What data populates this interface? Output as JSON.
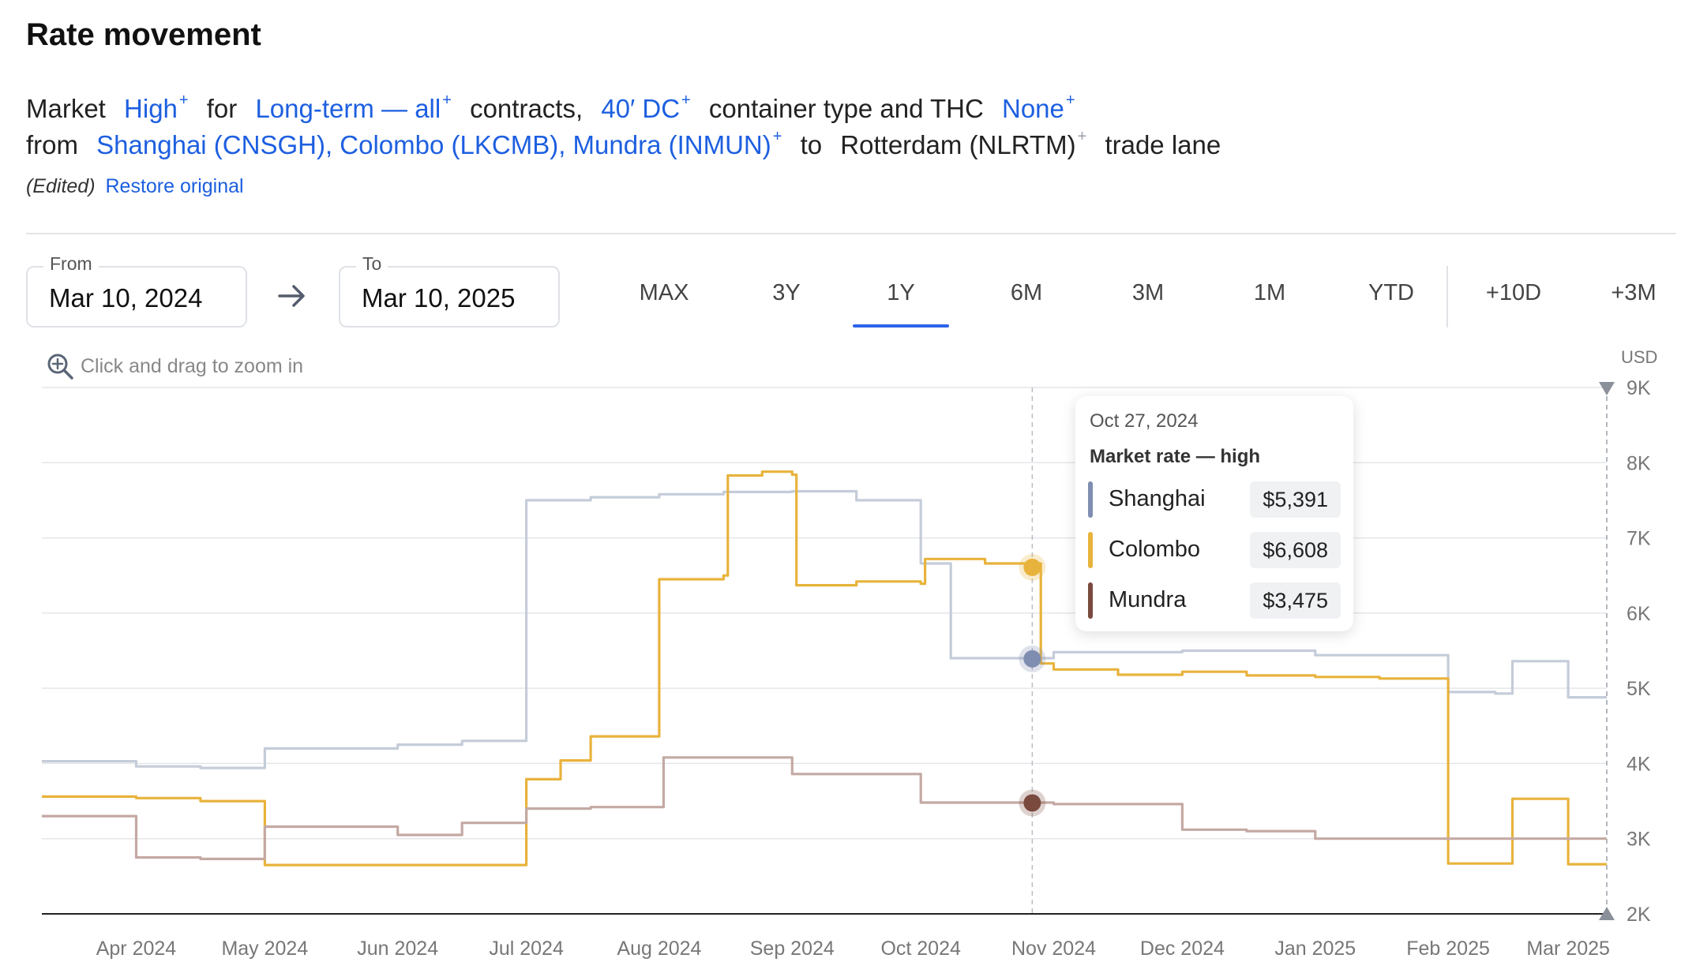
{
  "title": "Rate movement",
  "description": {
    "w_market": "Market",
    "market_value": "High",
    "w_for": "for",
    "contract_value": "Long-term — all",
    "w_contracts": "contracts,",
    "container_value": "40′ DC",
    "w_container": "container type and THC",
    "thc_value": "None",
    "w_from": "from",
    "origins_value": "Shanghai (CNSGH), Colombo (LKCMB), Mundra (INMUN)",
    "w_to": "to",
    "destination_value": "Rotterdam (NLRTM)",
    "w_tradelane": "trade lane",
    "plus": "+"
  },
  "edited_label": "(Edited)",
  "restore_label": "Restore original",
  "date_range": {
    "from_label": "From",
    "from_value": "Mar 10, 2024",
    "to_label": "To",
    "to_value": "Mar 10, 2025"
  },
  "range_buttons": [
    "MAX",
    "3Y",
    "1Y",
    "6M",
    "3M",
    "1M",
    "YTD",
    "+10D",
    "+3M"
  ],
  "active_range": "1Y",
  "zoom_hint": "Click and drag to zoom in",
  "tooltip": {
    "date": "Oct 27, 2024",
    "subtitle": "Market rate — high",
    "rows": [
      {
        "name": "Shanghai",
        "value": "$5,391",
        "color": "#7f8db0"
      },
      {
        "name": "Colombo",
        "value": "$6,608",
        "color": "#e8b33c"
      },
      {
        "name": "Mundra",
        "value": "$3,475",
        "color": "#7a4a3e"
      }
    ]
  },
  "chart_data": {
    "type": "line",
    "step": true,
    "ylabel": "USD",
    "ylim": [
      2000,
      9000
    ],
    "yticks": [
      2000,
      3000,
      4000,
      5000,
      6000,
      7000,
      8000,
      9000
    ],
    "ytick_labels": [
      "2K",
      "3K",
      "4K",
      "5K",
      "6K",
      "7K",
      "8K",
      "9K"
    ],
    "xlim": [
      "2024-03-10",
      "2025-03-10"
    ],
    "xticks": [
      {
        "date": "2024-04-01",
        "label": "Apr 2024"
      },
      {
        "date": "2024-05-01",
        "label": "May 2024"
      },
      {
        "date": "2024-06-01",
        "label": "Jun 2024"
      },
      {
        "date": "2024-07-01",
        "label": "Jul 2024"
      },
      {
        "date": "2024-08-01",
        "label": "Aug 2024"
      },
      {
        "date": "2024-09-01",
        "label": "Sep 2024"
      },
      {
        "date": "2024-10-01",
        "label": "Oct 2024"
      },
      {
        "date": "2024-11-01",
        "label": "Nov 2024"
      },
      {
        "date": "2024-12-01",
        "label": "Dec 2024"
      },
      {
        "date": "2025-01-01",
        "label": "Jan 2025"
      },
      {
        "date": "2025-02-01",
        "label": "Feb 2025"
      },
      {
        "date": "2025-03-01",
        "label": "Mar 2025"
      }
    ],
    "grid": true,
    "hover_date": "2024-10-27",
    "series": [
      {
        "name": "Shanghai",
        "color": "#c5ccd9",
        "marker_color": "#7f8db0",
        "points": [
          [
            "2024-03-10",
            4030
          ],
          [
            "2024-04-01",
            3960
          ],
          [
            "2024-04-16",
            3940
          ],
          [
            "2024-05-01",
            4200
          ],
          [
            "2024-06-01",
            4250
          ],
          [
            "2024-06-16",
            4300
          ],
          [
            "2024-07-01",
            7500
          ],
          [
            "2024-07-16",
            7540
          ],
          [
            "2024-08-01",
            7580
          ],
          [
            "2024-08-16",
            7610
          ],
          [
            "2024-09-01",
            7620
          ],
          [
            "2024-09-16",
            7500
          ],
          [
            "2024-10-01",
            6660
          ],
          [
            "2024-10-08",
            5400
          ],
          [
            "2024-11-01",
            5480
          ],
          [
            "2024-12-01",
            5500
          ],
          [
            "2025-01-01",
            5440
          ],
          [
            "2025-02-01",
            4950
          ],
          [
            "2025-02-12",
            4930
          ],
          [
            "2025-02-16",
            5360
          ],
          [
            "2025-03-01",
            4880
          ],
          [
            "2025-03-10",
            4880
          ]
        ]
      },
      {
        "name": "Colombo",
        "color": "#e8b33c",
        "marker_color": "#e8b33c",
        "points": [
          [
            "2024-03-10",
            3560
          ],
          [
            "2024-04-01",
            3540
          ],
          [
            "2024-04-16",
            3500
          ],
          [
            "2024-05-01",
            2650
          ],
          [
            "2024-06-01",
            2650
          ],
          [
            "2024-07-01",
            3790
          ],
          [
            "2024-07-09",
            4040
          ],
          [
            "2024-07-16",
            4360
          ],
          [
            "2024-08-01",
            6450
          ],
          [
            "2024-08-16",
            6500
          ],
          [
            "2024-08-17",
            7830
          ],
          [
            "2024-08-25",
            7880
          ],
          [
            "2024-09-01",
            7840
          ],
          [
            "2024-09-02",
            6370
          ],
          [
            "2024-09-16",
            6420
          ],
          [
            "2024-10-01",
            6390
          ],
          [
            "2024-10-02",
            6720
          ],
          [
            "2024-10-16",
            6660
          ],
          [
            "2024-10-29",
            5330
          ],
          [
            "2024-11-01",
            5250
          ],
          [
            "2024-11-16",
            5180
          ],
          [
            "2024-12-01",
            5220
          ],
          [
            "2024-12-16",
            5170
          ],
          [
            "2025-01-01",
            5150
          ],
          [
            "2025-01-16",
            5130
          ],
          [
            "2025-02-01",
            2670
          ],
          [
            "2025-02-16",
            3530
          ],
          [
            "2025-03-01",
            2660
          ],
          [
            "2025-03-10",
            2660
          ]
        ]
      },
      {
        "name": "Mundra",
        "color": "#c4a9a3",
        "marker_color": "#7a4a3e",
        "points": [
          [
            "2024-03-10",
            3300
          ],
          [
            "2024-04-01",
            2750
          ],
          [
            "2024-04-16",
            2730
          ],
          [
            "2024-05-01",
            3160
          ],
          [
            "2024-06-01",
            3050
          ],
          [
            "2024-06-16",
            3210
          ],
          [
            "2024-07-01",
            3400
          ],
          [
            "2024-07-16",
            3420
          ],
          [
            "2024-08-01",
            3420
          ],
          [
            "2024-08-02",
            4080
          ],
          [
            "2024-09-01",
            3860
          ],
          [
            "2024-10-01",
            3480
          ],
          [
            "2024-11-01",
            3460
          ],
          [
            "2024-12-01",
            3120
          ],
          [
            "2024-12-16",
            3100
          ],
          [
            "2025-01-01",
            3000
          ],
          [
            "2025-03-10",
            3000
          ]
        ]
      }
    ],
    "hover_values": [
      {
        "name": "Shanghai",
        "value": 5391
      },
      {
        "name": "Colombo",
        "value": 6608
      },
      {
        "name": "Mundra",
        "value": 3475
      }
    ]
  }
}
